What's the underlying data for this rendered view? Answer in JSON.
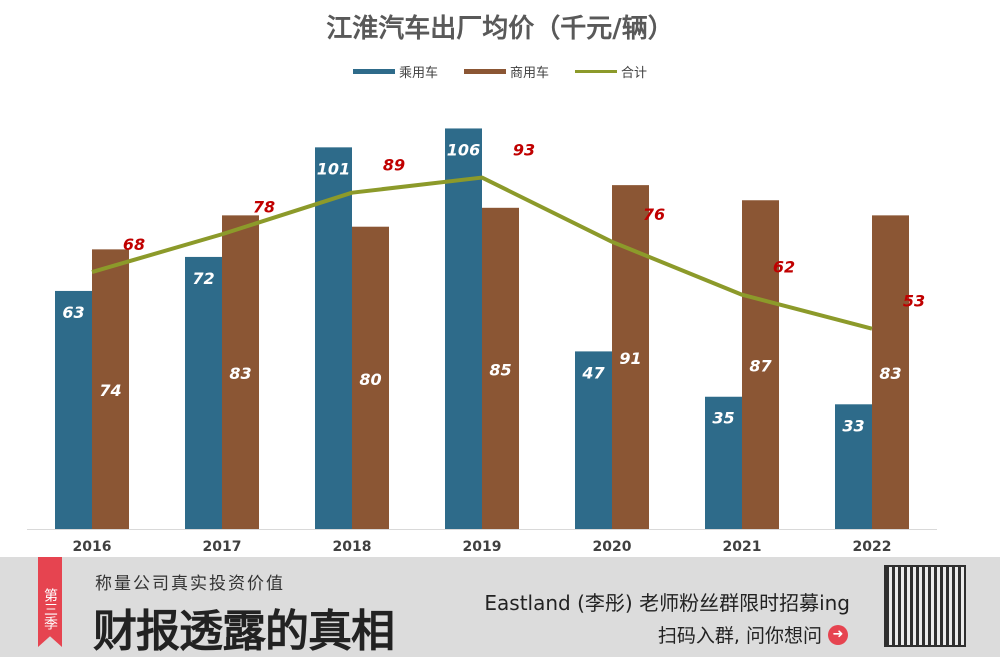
{
  "chart_data": {
    "type": "bar",
    "title": "江淮汽车出厂均价（千元/辆）",
    "categories": [
      "2016",
      "2017",
      "2018",
      "2019",
      "2020",
      "2021",
      "2022"
    ],
    "series": [
      {
        "name": "乘用车",
        "type": "bar",
        "color": "#2e6b8a",
        "values": [
          63,
          72,
          101,
          106,
          47,
          35,
          33
        ]
      },
      {
        "name": "商用车",
        "type": "bar",
        "color": "#8b5634",
        "values": [
          74,
          83,
          80,
          85,
          91,
          87,
          83
        ]
      },
      {
        "name": "合计",
        "type": "line",
        "color": "#8c9a2a",
        "values": [
          68,
          78,
          89,
          93,
          76,
          62,
          53
        ]
      }
    ],
    "ylim": [
      0,
      113
    ],
    "grid": false,
    "legend": "top",
    "line_label_color": "#c00000"
  },
  "banner": {
    "season": "第三季",
    "subtitle": "称量公司真实投资价值",
    "main": "财报透露的真相",
    "promo": "Eastland (李彤) 老师粉丝群限时招募ing",
    "cta": "扫码入群, 问你想问",
    "cta_icon": "arrow-right-circle-icon",
    "qr": "qr-code"
  }
}
